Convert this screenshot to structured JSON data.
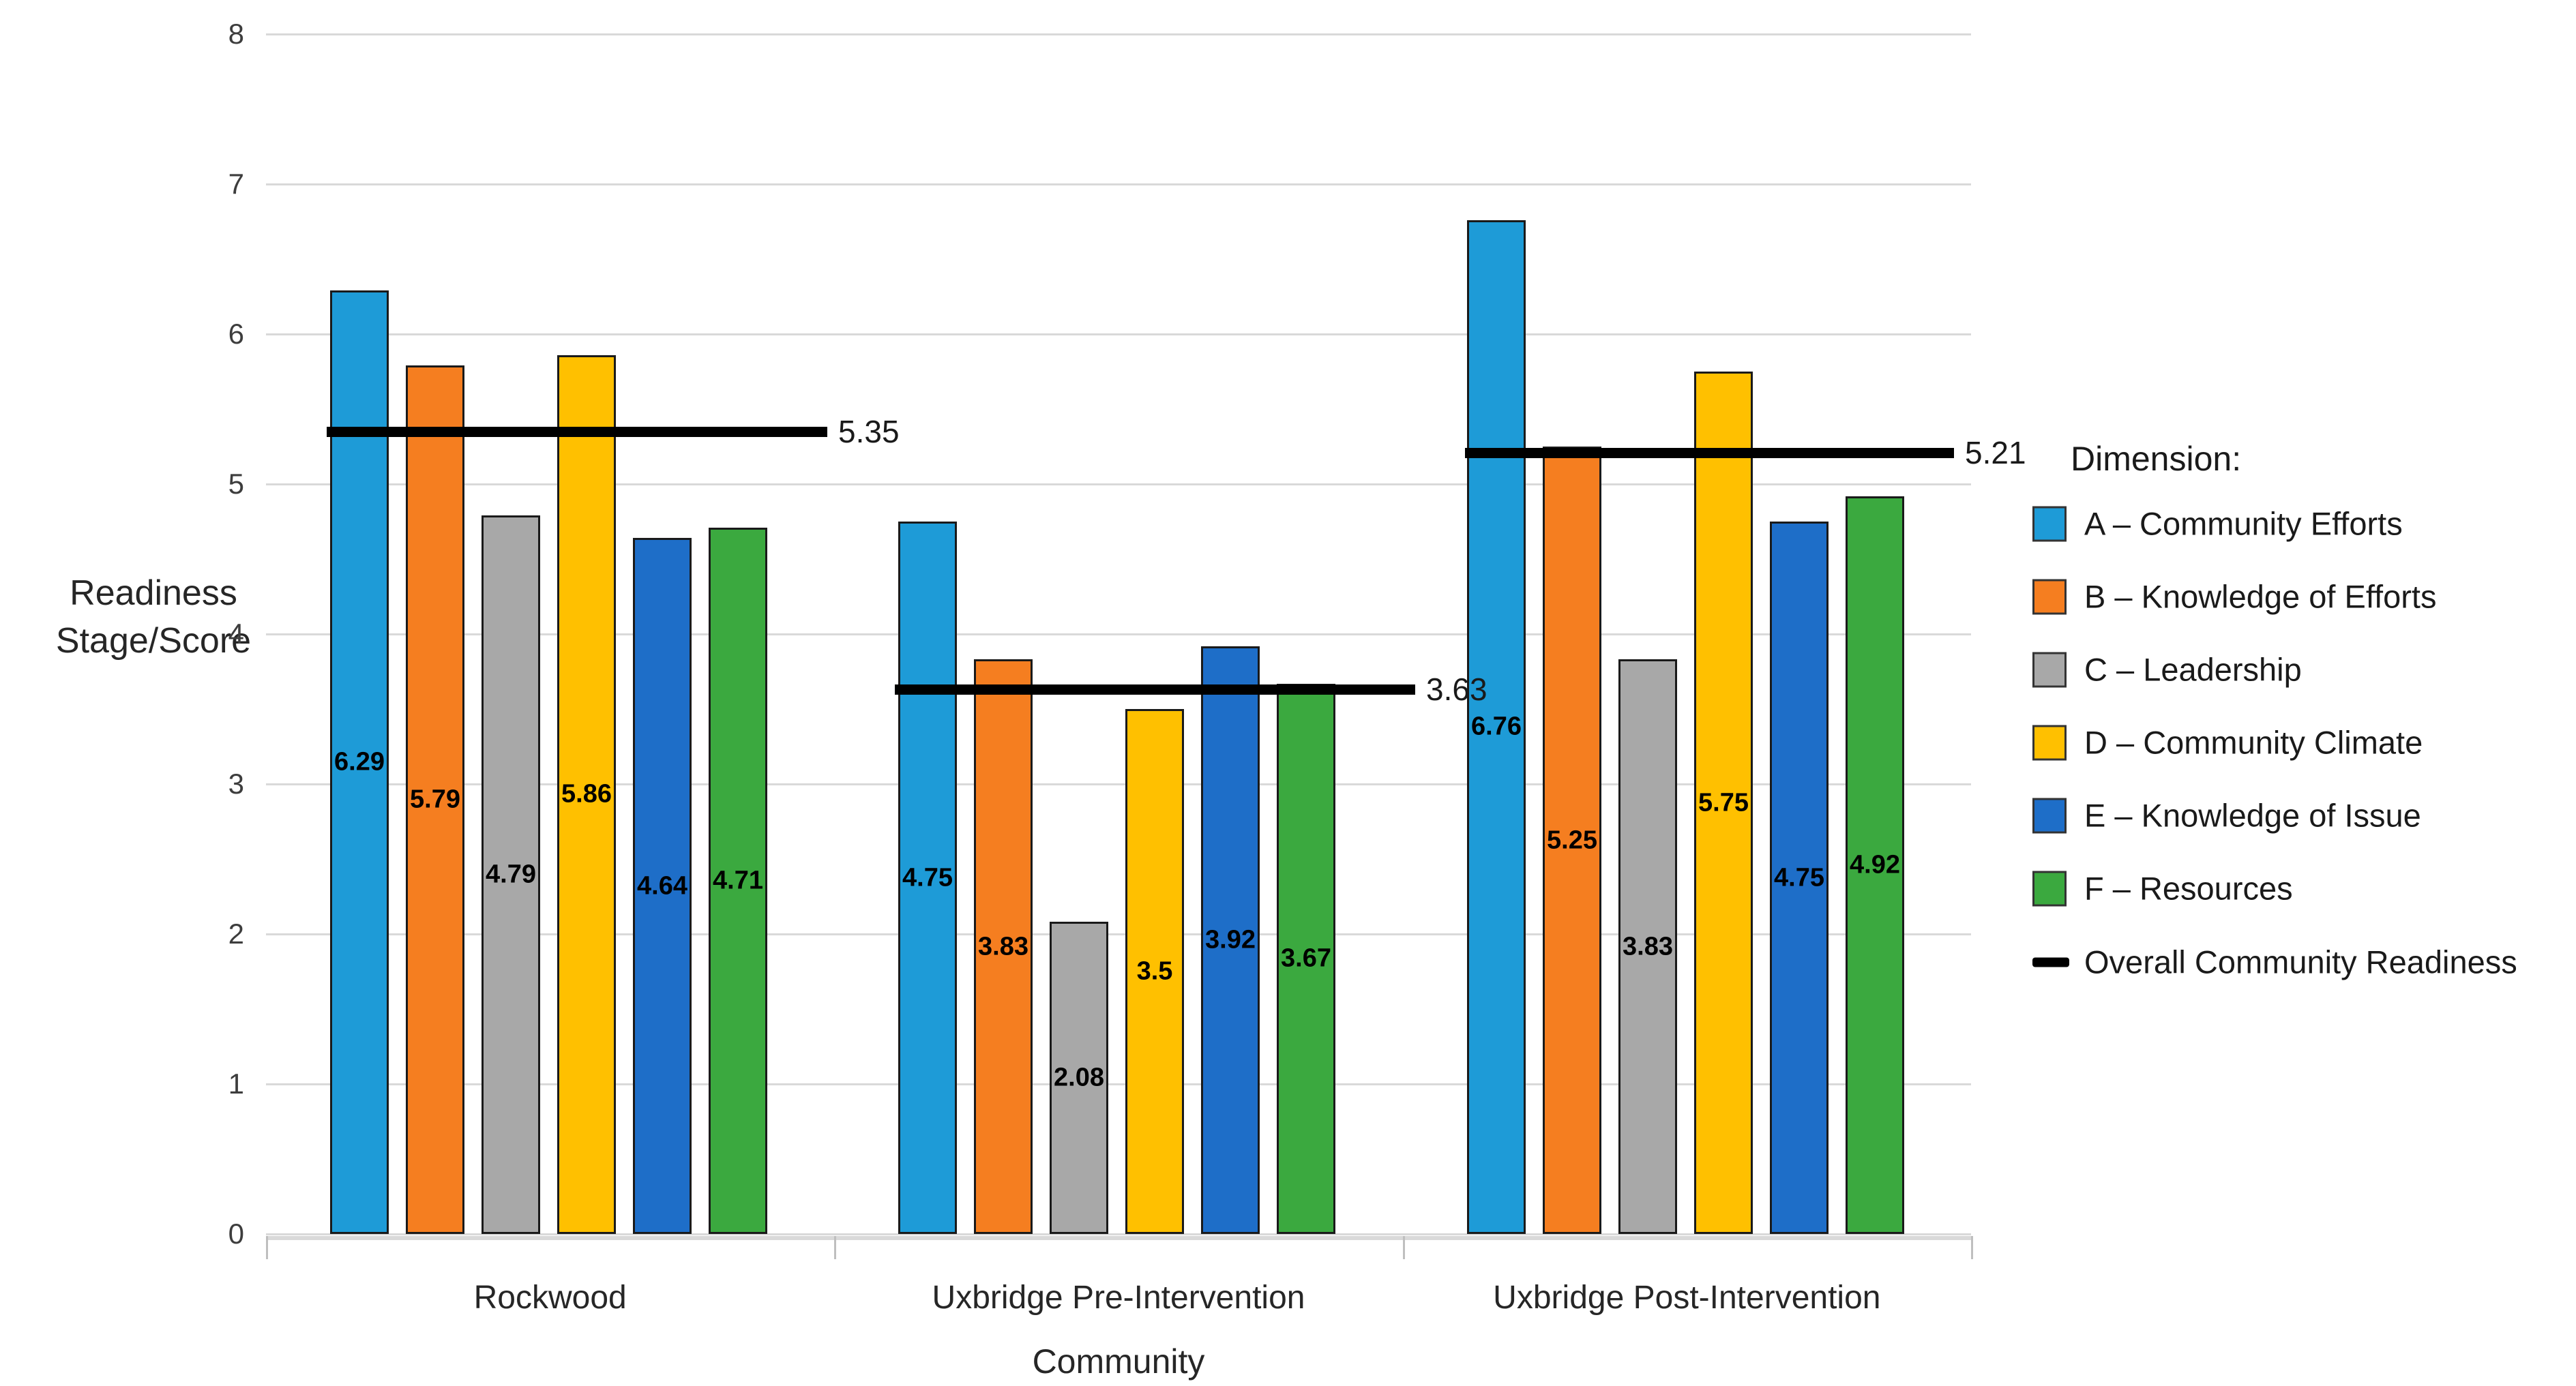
{
  "chart_data": {
    "type": "bar",
    "title": "",
    "xlabel": "Community",
    "ylabel": "Readiness Stage/Score",
    "ylim": [
      0,
      8
    ],
    "ytick_step": 1,
    "grid": true,
    "legend_position": "right",
    "legend_title": "Dimension:",
    "categories": [
      "Rockwood",
      "Uxbridge Pre-Intervention",
      "Uxbridge Post-Intervention"
    ],
    "series": [
      {
        "name": "A – Community Efforts",
        "color": "#1E9BD7",
        "values": [
          6.29,
          4.75,
          6.76
        ]
      },
      {
        "name": "B – Knowledge of Efforts",
        "color": "#F57E20",
        "values": [
          5.79,
          3.83,
          5.25
        ]
      },
      {
        "name": "C – Leadership",
        "color": "#A8A8A8",
        "values": [
          4.79,
          2.08,
          3.83
        ]
      },
      {
        "name": "D – Community Climate",
        "color": "#FFC000",
        "values": [
          5.86,
          3.5,
          5.75
        ]
      },
      {
        "name": "E – Knowledge of Issue",
        "color": "#1E6EC8",
        "values": [
          4.64,
          3.92,
          4.75
        ]
      },
      {
        "name": "F – Resources",
        "color": "#3BA93F",
        "values": [
          4.71,
          3.67,
          4.92
        ]
      }
    ],
    "overall_line": {
      "name": "Overall Community Readiness",
      "color": "#000000",
      "values": [
        5.35,
        3.63,
        5.21
      ]
    }
  }
}
